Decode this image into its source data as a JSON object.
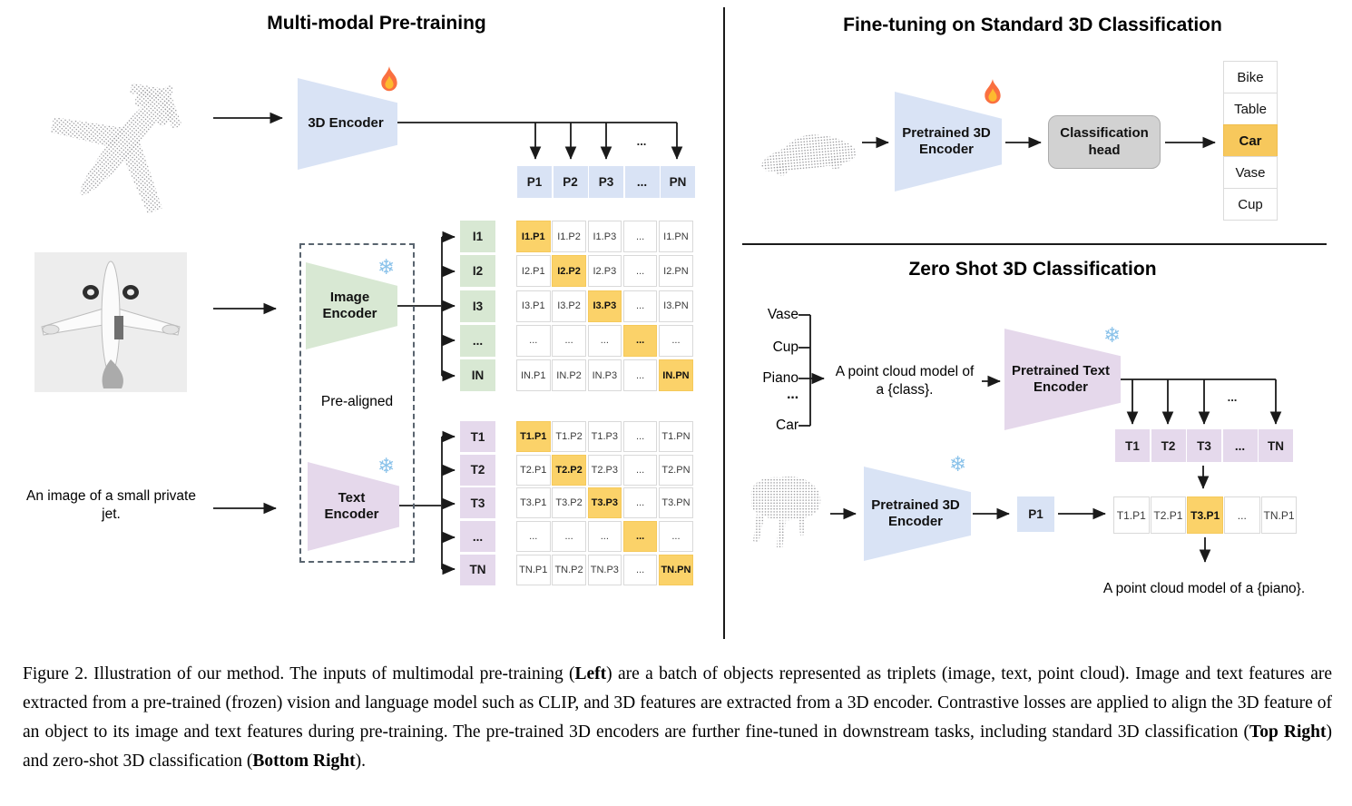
{
  "icons": {
    "snowflake": "❄"
  },
  "left": {
    "title": "Multi-modal Pre-training",
    "encoder_3d_label": "3D Encoder",
    "image_encoder_label": "Image Encoder",
    "text_encoder_label": "Text Encoder",
    "pre_aligned_label": "Pre-aligned",
    "image_caption": "An image of a small private jet.",
    "dots": "...",
    "p_row": [
      {
        "t": "P1"
      },
      {
        "t": "P2"
      },
      {
        "t": "P3"
      },
      {
        "t": "..."
      },
      {
        "t": "PN"
      }
    ],
    "i_col": [
      {
        "t": "I1"
      },
      {
        "t": "I2"
      },
      {
        "t": "I3"
      },
      {
        "t": "..."
      },
      {
        "t": "IN"
      }
    ],
    "t_col": [
      {
        "t": "T1"
      },
      {
        "t": "T2"
      },
      {
        "t": "T3"
      },
      {
        "t": "..."
      },
      {
        "t": "TN"
      }
    ],
    "i_matrix": [
      [
        {
          "t": "I1.P1",
          "hl": true
        },
        {
          "t": "I1.P2"
        },
        {
          "t": "I1.P3"
        },
        {
          "t": "..."
        },
        {
          "t": "I1.PN"
        }
      ],
      [
        {
          "t": "I2.P1"
        },
        {
          "t": "I2.P2",
          "hl": true
        },
        {
          "t": "I2.P3"
        },
        {
          "t": "..."
        },
        {
          "t": "I2.PN"
        }
      ],
      [
        {
          "t": "I3.P1"
        },
        {
          "t": "I3.P2"
        },
        {
          "t": "I3.P3",
          "hl": true
        },
        {
          "t": "..."
        },
        {
          "t": "I3.PN"
        }
      ],
      [
        {
          "t": "..."
        },
        {
          "t": "..."
        },
        {
          "t": "..."
        },
        {
          "t": "...",
          "hl": true
        },
        {
          "t": "..."
        }
      ],
      [
        {
          "t": "IN.P1"
        },
        {
          "t": "IN.P2"
        },
        {
          "t": "IN.P3"
        },
        {
          "t": "..."
        },
        {
          "t": "IN.PN",
          "hl": true
        }
      ]
    ],
    "t_matrix": [
      [
        {
          "t": "T1.P1",
          "hl": true
        },
        {
          "t": "T1.P2"
        },
        {
          "t": "T1.P3"
        },
        {
          "t": "..."
        },
        {
          "t": "T1.PN"
        }
      ],
      [
        {
          "t": "T2.P1"
        },
        {
          "t": "T2.P2",
          "hl": true
        },
        {
          "t": "T2.P3"
        },
        {
          "t": "..."
        },
        {
          "t": "T2.PN"
        }
      ],
      [
        {
          "t": "T3.P1"
        },
        {
          "t": "T3.P2"
        },
        {
          "t": "T3.P3",
          "hl": true
        },
        {
          "t": "..."
        },
        {
          "t": "T3.PN"
        }
      ],
      [
        {
          "t": "..."
        },
        {
          "t": "..."
        },
        {
          "t": "..."
        },
        {
          "t": "...",
          "hl": true
        },
        {
          "t": "..."
        }
      ],
      [
        {
          "t": "TN.P1"
        },
        {
          "t": "TN.P2"
        },
        {
          "t": "TN.P3"
        },
        {
          "t": "..."
        },
        {
          "t": "TN.PN",
          "hl": true
        }
      ]
    ]
  },
  "top_right": {
    "title": "Fine-tuning on Standard 3D Classification",
    "encoder_label": "Pretrained 3D Encoder",
    "head_label": "Classification head",
    "classes": [
      {
        "t": "Bike"
      },
      {
        "t": "Table"
      },
      {
        "t": "Car",
        "hl": true
      },
      {
        "t": "Vase"
      },
      {
        "t": "Cup"
      }
    ]
  },
  "bottom_right": {
    "title": "Zero Shot 3D Classification",
    "class_list": [
      "Vase",
      "Cup",
      "Piano",
      "...",
      "Car"
    ],
    "prompt_line1": "A point cloud model of",
    "prompt_line2": "a {class}.",
    "text_encoder_label": "Pretrained Text Encoder",
    "encoder_3d_label": "Pretrained 3D Encoder",
    "p1_label": "P1",
    "dots": "...",
    "t_row": [
      {
        "t": "T1"
      },
      {
        "t": "T2"
      },
      {
        "t": "T3"
      },
      {
        "t": "..."
      },
      {
        "t": "TN"
      }
    ],
    "sim_row": [
      {
        "t": "T1.P1"
      },
      {
        "t": "T2.P1"
      },
      {
        "t": "T3.P1",
        "hl": true
      },
      {
        "t": "..."
      },
      {
        "t": "TN.P1"
      }
    ],
    "result_text": "A point cloud model of a {piano}."
  },
  "caption": {
    "segments": [
      {
        "t": "Figure 2. Illustration of our method. The inputs of multimodal pre-training ("
      },
      {
        "t": "Left",
        "b": true
      },
      {
        "t": ") are a batch of objects represented as triplets (image, text, point cloud). Image and text features are extracted from a pre-trained (frozen) vision and language model such as CLIP, and 3D features are extracted from a 3D encoder. Contrastive losses are applied to align the 3D feature of an object to its image and text features during pre-training. The pre-trained 3D encoders are further fine-tuned in downstream tasks, including standard 3D classification ("
      },
      {
        "t": "Top Right",
        "b": true
      },
      {
        "t": ") and zero-shot 3D classification ("
      },
      {
        "t": "Bottom Right",
        "b": true
      },
      {
        "t": ")."
      }
    ]
  }
}
